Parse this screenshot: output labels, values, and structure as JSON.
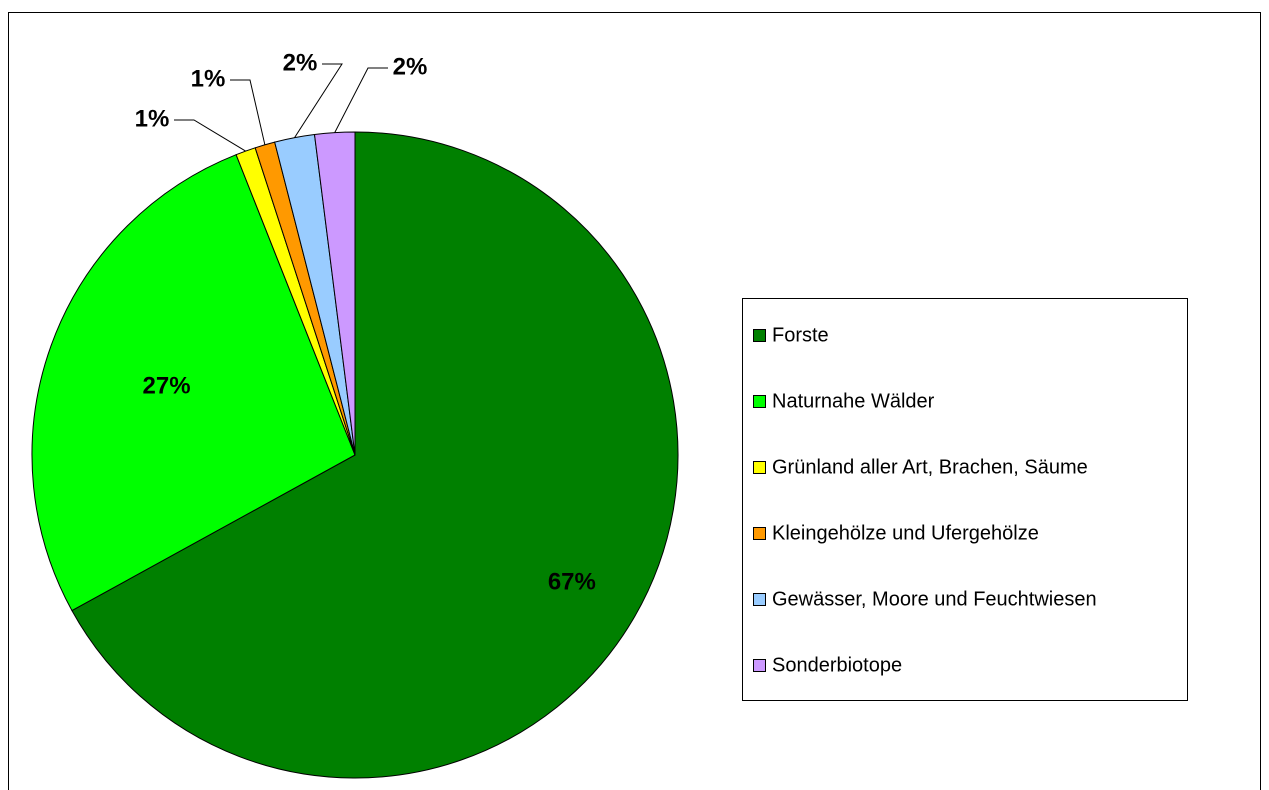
{
  "chart_data": {
    "type": "pie",
    "categories": [
      "Forste",
      "Naturnahe Wälder",
      "Grünland aller Art, Brachen, Säume",
      "Kleingehölze und Ufergehölze",
      "Gewässer, Moore und Feuchtwiesen",
      "Sonderbiotope"
    ],
    "values": [
      67,
      27,
      1,
      1,
      2,
      2
    ],
    "value_labels": [
      "67%",
      "27%",
      "1%",
      "1%",
      "2%",
      "2%"
    ],
    "colors": [
      "#008000",
      "#00ff00",
      "#ffff00",
      "#ff9900",
      "#99ccff",
      "#cc99ff"
    ],
    "legend": "right"
  }
}
